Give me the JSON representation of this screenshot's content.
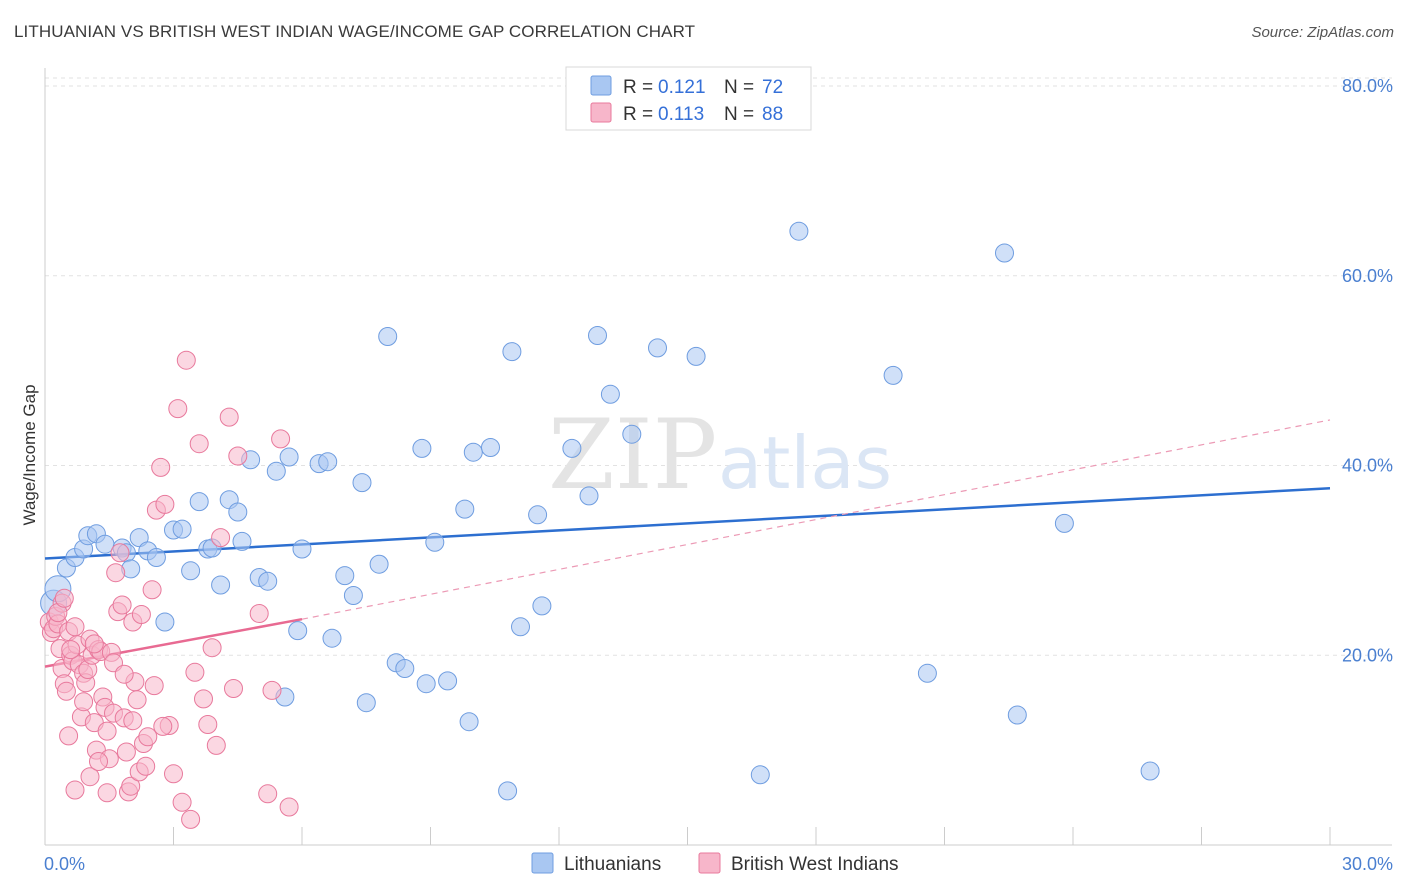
{
  "title": "LITHUANIAN VS BRITISH WEST INDIAN WAGE/INCOME GAP CORRELATION CHART",
  "source": "Source: ZipAtlas.com",
  "watermark": {
    "zip": "ZIP",
    "atlas": "atlas"
  },
  "chart_data": {
    "type": "scatter",
    "ylabel": "Wage/Income Gap",
    "xlim": [
      0,
      30
    ],
    "ylim": [
      0,
      80
    ],
    "y_ticks": [
      {
        "value": 20,
        "label": "20.0%"
      },
      {
        "value": 40,
        "label": "40.0%"
      },
      {
        "value": 60,
        "label": "60.0%"
      },
      {
        "value": 80,
        "label": "80.0%"
      }
    ],
    "x_tick_labels": {
      "min": "0.0%",
      "max": "30.0%"
    },
    "legend": [
      {
        "name": "Lithuanians",
        "r_label": "R = ",
        "r_value": "0.121",
        "n_label": "N = ",
        "n_value": "72",
        "color": "#a9c7f2",
        "stroke": "#6f9de0"
      },
      {
        "name": "British West Indians",
        "r_label": "R = ",
        "r_value": "0.113",
        "n_label": "N = ",
        "n_value": "88",
        "color": "#f7b6ca",
        "stroke": "#e8799c"
      }
    ],
    "series": [
      {
        "name": "Lithuanians",
        "color": "#a9c7f2",
        "stroke": "#6f9de0",
        "trend": {
          "x0": 0,
          "y0": 30.2,
          "x1": 30,
          "y1": 37.6,
          "color": "#2d6fd0"
        },
        "points": [
          [
            0.2,
            25.5
          ],
          [
            0.3,
            27.0
          ],
          [
            0.5,
            29.2
          ],
          [
            0.7,
            30.3
          ],
          [
            0.9,
            31.2
          ],
          [
            1.0,
            32.6
          ],
          [
            1.2,
            32.8
          ],
          [
            1.4,
            31.7
          ],
          [
            1.8,
            31.3
          ],
          [
            1.9,
            30.8
          ],
          [
            2.0,
            29.1
          ],
          [
            2.2,
            32.4
          ],
          [
            2.4,
            31.0
          ],
          [
            2.6,
            30.3
          ],
          [
            2.8,
            23.5
          ],
          [
            3.0,
            33.2
          ],
          [
            3.2,
            33.3
          ],
          [
            3.4,
            28.9
          ],
          [
            3.6,
            36.2
          ],
          [
            3.8,
            31.2
          ],
          [
            3.9,
            31.3
          ],
          [
            4.1,
            27.4
          ],
          [
            4.3,
            36.4
          ],
          [
            4.5,
            35.1
          ],
          [
            4.6,
            32.0
          ],
          [
            4.8,
            40.6
          ],
          [
            5.0,
            28.2
          ],
          [
            5.2,
            27.8
          ],
          [
            5.4,
            39.4
          ],
          [
            5.6,
            15.6
          ],
          [
            5.7,
            40.9
          ],
          [
            5.9,
            22.6
          ],
          [
            6.0,
            31.2
          ],
          [
            6.4,
            40.2
          ],
          [
            6.6,
            40.4
          ],
          [
            6.7,
            21.8
          ],
          [
            7.0,
            28.4
          ],
          [
            7.2,
            26.3
          ],
          [
            7.4,
            38.2
          ],
          [
            7.5,
            15.0
          ],
          [
            7.8,
            29.6
          ],
          [
            8.0,
            53.6
          ],
          [
            8.2,
            19.2
          ],
          [
            8.4,
            18.6
          ],
          [
            8.8,
            41.8
          ],
          [
            8.9,
            17.0
          ],
          [
            9.1,
            31.9
          ],
          [
            9.4,
            17.3
          ],
          [
            9.8,
            35.4
          ],
          [
            9.9,
            13.0
          ],
          [
            10.0,
            41.4
          ],
          [
            10.4,
            41.9
          ],
          [
            10.8,
            5.7
          ],
          [
            10.9,
            52.0
          ],
          [
            11.1,
            23.0
          ],
          [
            11.5,
            34.8
          ],
          [
            11.6,
            25.2
          ],
          [
            12.3,
            41.8
          ],
          [
            12.7,
            36.8
          ],
          [
            12.9,
            53.7
          ],
          [
            13.2,
            47.5
          ],
          [
            13.7,
            43.3
          ],
          [
            14.3,
            52.4
          ],
          [
            15.2,
            51.5
          ],
          [
            16.7,
            7.4
          ],
          [
            17.6,
            64.7
          ],
          [
            19.8,
            49.5
          ],
          [
            20.6,
            18.1
          ],
          [
            22.4,
            62.4
          ],
          [
            22.7,
            13.7
          ],
          [
            23.8,
            33.9
          ],
          [
            25.8,
            7.8
          ]
        ]
      },
      {
        "name": "British West Indians",
        "color": "#f7b6ca",
        "stroke": "#e8799c",
        "trend": {
          "x0": 0,
          "y0": 18.8,
          "x1": 6.0,
          "y1": 23.8,
          "color": "#e86a92"
        },
        "trend_dashed": {
          "x0": 6.0,
          "y0": 23.8,
          "x1": 30,
          "y1": 44.8,
          "color": "#ec9ab5"
        },
        "points": [
          [
            0.1,
            23.5
          ],
          [
            0.15,
            22.4
          ],
          [
            0.2,
            22.8
          ],
          [
            0.25,
            24.1
          ],
          [
            0.3,
            23.3
          ],
          [
            0.35,
            20.7
          ],
          [
            0.4,
            18.6
          ],
          [
            0.45,
            17.0
          ],
          [
            0.5,
            16.2
          ],
          [
            0.55,
            22.5
          ],
          [
            0.6,
            20.0
          ],
          [
            0.65,
            19.4
          ],
          [
            0.7,
            23.0
          ],
          [
            0.75,
            21.1
          ],
          [
            0.8,
            19.0
          ],
          [
            0.85,
            13.5
          ],
          [
            0.9,
            18.1
          ],
          [
            0.95,
            17.1
          ],
          [
            1.0,
            18.5
          ],
          [
            1.05,
            21.7
          ],
          [
            1.1,
            20.0
          ],
          [
            1.15,
            12.9
          ],
          [
            1.2,
            10.0
          ],
          [
            1.25,
            20.6
          ],
          [
            1.3,
            20.4
          ],
          [
            1.35,
            15.6
          ],
          [
            1.4,
            14.5
          ],
          [
            1.45,
            12.0
          ],
          [
            1.5,
            9.1
          ],
          [
            1.55,
            20.3
          ],
          [
            1.6,
            13.9
          ],
          [
            1.65,
            28.7
          ],
          [
            1.7,
            24.6
          ],
          [
            1.75,
            30.8
          ],
          [
            1.8,
            25.3
          ],
          [
            1.85,
            13.4
          ],
          [
            1.9,
            9.8
          ],
          [
            1.95,
            5.6
          ],
          [
            2.0,
            6.2
          ],
          [
            2.05,
            23.5
          ],
          [
            2.1,
            17.2
          ],
          [
            2.15,
            15.3
          ],
          [
            2.2,
            7.7
          ],
          [
            2.25,
            24.3
          ],
          [
            2.3,
            10.7
          ],
          [
            2.35,
            8.3
          ],
          [
            2.4,
            11.4
          ],
          [
            2.5,
            26.9
          ],
          [
            2.6,
            35.3
          ],
          [
            2.7,
            39.8
          ],
          [
            2.8,
            35.9
          ],
          [
            2.9,
            12.6
          ],
          [
            3.0,
            7.5
          ],
          [
            3.1,
            46.0
          ],
          [
            3.2,
            4.5
          ],
          [
            3.3,
            51.1
          ],
          [
            3.4,
            2.7
          ],
          [
            3.5,
            18.2
          ],
          [
            3.6,
            42.3
          ],
          [
            3.7,
            15.4
          ],
          [
            3.8,
            12.7
          ],
          [
            3.9,
            20.8
          ],
          [
            4.0,
            10.5
          ],
          [
            4.1,
            32.4
          ],
          [
            4.3,
            45.1
          ],
          [
            4.4,
            16.5
          ],
          [
            4.5,
            41.0
          ],
          [
            5.0,
            24.4
          ],
          [
            5.2,
            5.4
          ],
          [
            5.3,
            16.3
          ],
          [
            5.5,
            42.8
          ],
          [
            5.7,
            4.0
          ],
          [
            1.05,
            7.2
          ],
          [
            0.7,
            5.8
          ],
          [
            1.45,
            5.5
          ],
          [
            2.55,
            16.8
          ],
          [
            0.4,
            25.5
          ],
          [
            0.55,
            11.5
          ],
          [
            0.9,
            15.1
          ],
          [
            1.6,
            19.2
          ],
          [
            2.05,
            13.1
          ],
          [
            2.75,
            12.5
          ],
          [
            0.3,
            24.5
          ],
          [
            0.6,
            20.6
          ],
          [
            1.25,
            8.8
          ],
          [
            1.85,
            18.0
          ],
          [
            0.45,
            26.0
          ],
          [
            1.15,
            21.2
          ]
        ]
      }
    ]
  }
}
